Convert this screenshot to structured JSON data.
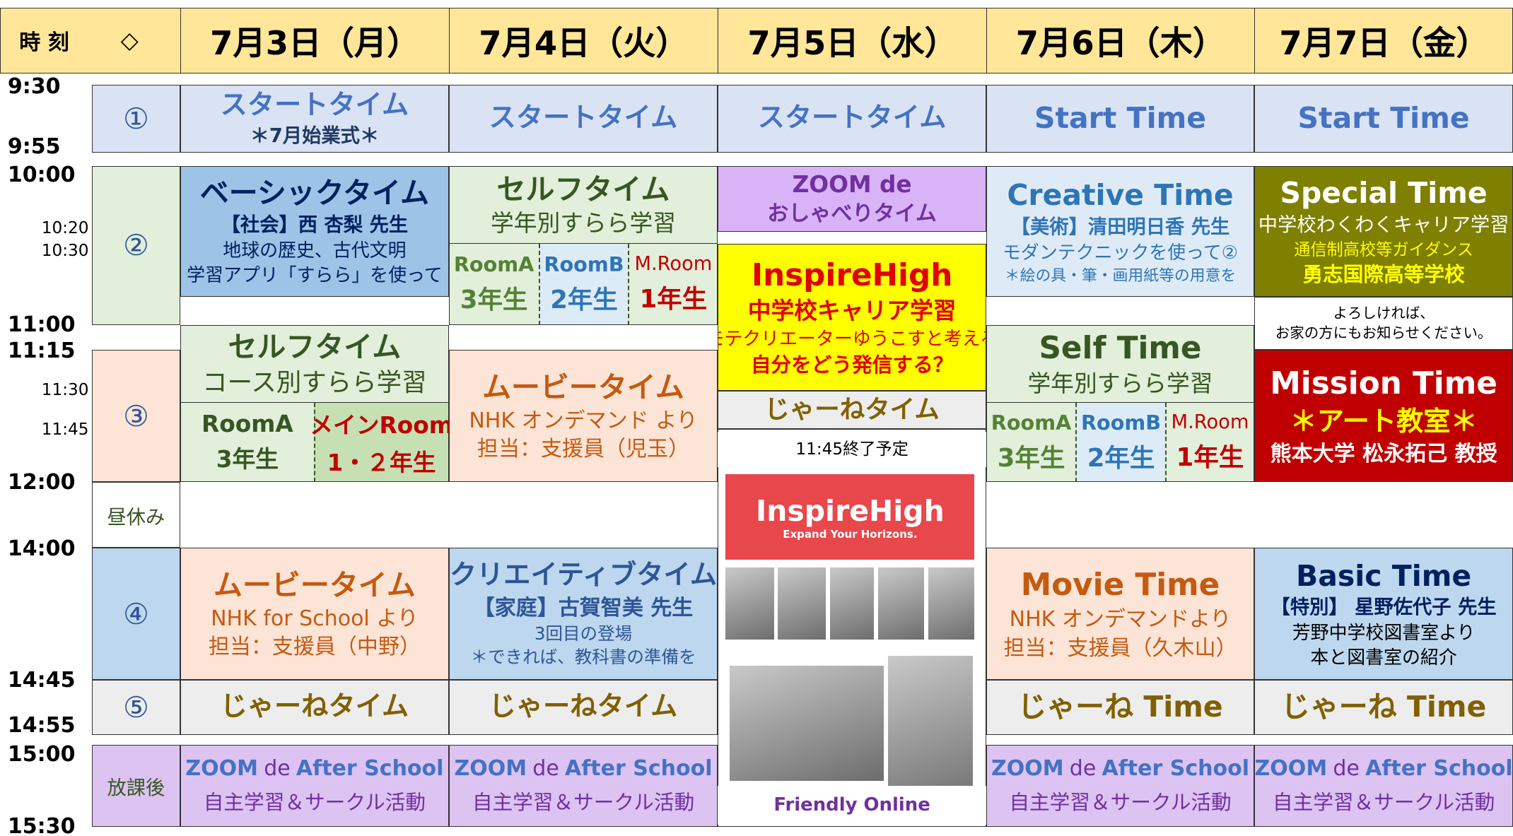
{
  "header": {
    "time": "時 刻",
    "mark": "◇",
    "days": [
      "7月3日（月）",
      "7月4日（火）",
      "7月5日（水）",
      "7月6日（木）",
      "7月7日（金）"
    ]
  },
  "times": [
    "9:30",
    "9:55",
    "10:00",
    "10:20",
    "10:30",
    "11:00",
    "11:15",
    "11:30",
    "11:45",
    "12:00",
    "14:00",
    "14:45",
    "14:55",
    "15:00",
    "15:30"
  ],
  "periods": [
    "①",
    "②",
    "③",
    "昼休み",
    "④",
    "⑤",
    "放課後"
  ],
  "cells": [
    {
      "lines": [
        "スタートタイム",
        "＊7月始業式＊"
      ]
    },
    {
      "lines": [
        "ベーシックタイム",
        "【社会】西 杏梨 先生",
        "地球の歴史、古代文明",
        "学習アプリ「すらら」を使って"
      ]
    },
    {
      "lines": [
        "セルフタイム",
        "コース別すらら学習"
      ],
      "rooms": [
        {
          "name": "RoomA",
          "grade": "3年生"
        },
        {
          "name": "メインRoom",
          "grade": "1・２年生"
        }
      ]
    },
    {
      "lines": [
        "ムービータイム",
        "NHK for School より",
        "担当：支援員（中野）"
      ]
    },
    {
      "lines": [
        "じゃーねタイム"
      ]
    },
    {
      "lines": [
        "ZOOM",
        "de",
        "After School",
        "自主学習＆サークル活動"
      ]
    },
    {
      "lines": [
        "スタートタイム"
      ]
    },
    {
      "lines": [
        "セルフタイム",
        "学年別すらら学習"
      ],
      "rooms": [
        {
          "name": "RoomA",
          "grade": "3年生"
        },
        {
          "name": "RoomB",
          "grade": "2年生"
        },
        {
          "name": "M.Room",
          "grade": "1年生"
        }
      ]
    },
    {
      "lines": [
        "ムービータイム",
        "NHK オンデマンド より",
        "担当：支援員（児玉）"
      ]
    },
    {
      "lines": [
        "クリエイティブタイム",
        "【家庭】古賀智美 先生",
        "3回目の登場",
        "＊できれば、教科書の準備を"
      ]
    },
    {
      "lines": [
        "じゃーねタイム"
      ]
    },
    {
      "lines": [
        "ZOOM",
        "de",
        "After School",
        "自主学習＆サークル活動"
      ]
    },
    {
      "lines": [
        "スタートタイム"
      ]
    },
    {
      "lines": [
        "ZOOM de",
        "おしゃべりタイム"
      ]
    },
    {
      "lines": [
        "InspireHigh",
        "中学校キャリア学習",
        "モテクリエーターゆうこすと考える",
        "自分をどう発信する？"
      ]
    },
    {
      "lines": [
        "じゃーねタイム"
      ]
    },
    {
      "lines": [
        "11:45終了予定"
      ]
    },
    {
      "lines": [
        "InspireHigh",
        "Expand Your Horizons."
      ]
    },
    {
      "lines": [
        "Friendly Online"
      ]
    },
    {
      "lines": [
        "Start Time"
      ]
    },
    {
      "lines": [
        "Creative Time",
        "【美術】清田明日香 先生",
        "モダンテクニックを使って②",
        "＊絵の具・筆・画用紙等の用意を"
      ]
    },
    {
      "lines": [
        "Self Time",
        "学年別すらら学習"
      ],
      "rooms": [
        {
          "name": "RoomA",
          "grade": "3年生"
        },
        {
          "name": "RoomB",
          "grade": "2年生"
        },
        {
          "name": "M.Room",
          "grade": "1年生"
        }
      ]
    },
    {
      "lines": [
        "Movie Time",
        "NHK オンデマンドより",
        "担当：支援員（久木山）"
      ]
    },
    {
      "lines": [
        "じゃーね Time"
      ]
    },
    {
      "lines": [
        "ZOOM",
        "de",
        "After School",
        "自主学習＆サークル活動"
      ]
    },
    {
      "lines": [
        "Start Time"
      ]
    },
    {
      "lines": [
        "Special Time",
        "中学校わくわくキャリア学習",
        "通信制高校等ガイダンス",
        "勇志国際高等学校"
      ]
    },
    {
      "lines": [
        "よろしければ、",
        "お家の方にもお知らせください。"
      ]
    },
    {
      "lines": [
        "Mission Time",
        "＊アート教室＊",
        "熊本大学 松永拓己 教授"
      ]
    },
    {
      "lines": [
        "Basic Time",
        "【特別】 星野佐代子 先生",
        "芳野中学校図書室より",
        "本と図書室の紹介"
      ]
    },
    {
      "lines": [
        "じゃーね Time"
      ]
    },
    {
      "lines": [
        "ZOOM",
        "de",
        "After School",
        "自主学習＆サークル活動"
      ]
    }
  ]
}
